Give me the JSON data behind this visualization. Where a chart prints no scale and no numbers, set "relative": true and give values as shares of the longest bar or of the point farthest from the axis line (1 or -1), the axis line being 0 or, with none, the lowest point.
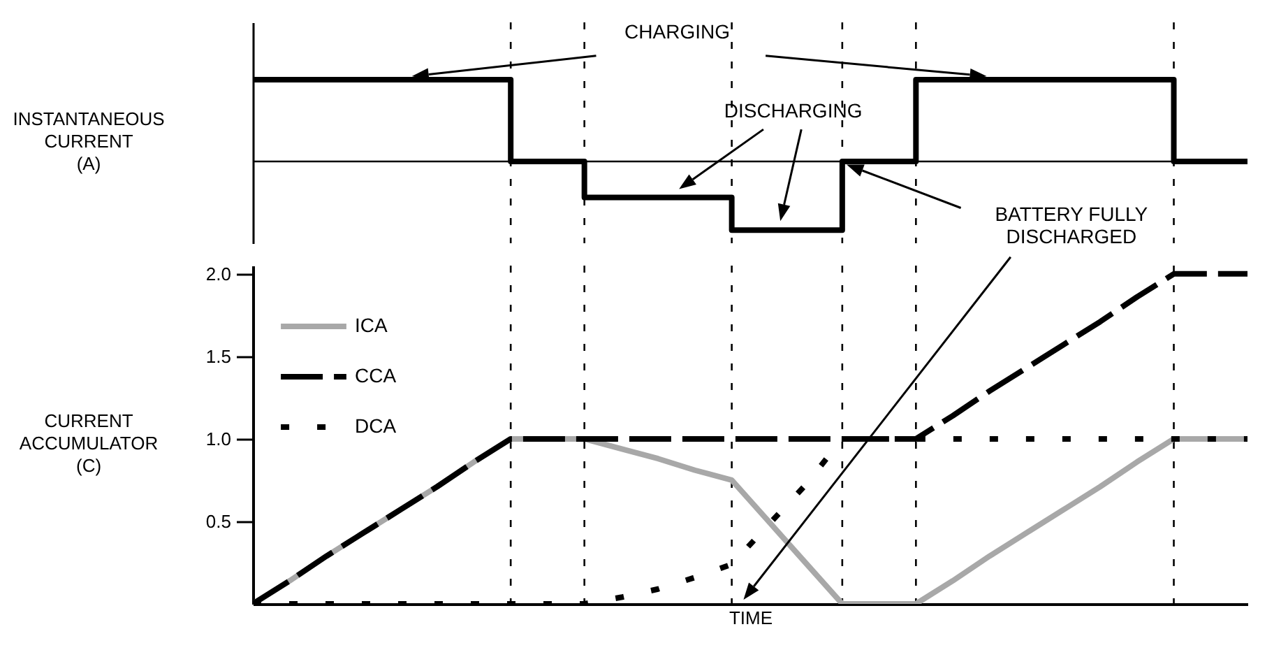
{
  "chart_data": [
    {
      "type": "step",
      "relative": true,
      "ylabel": "INSTANTANEOUS CURRENT (A)",
      "categories": [
        null,
        null,
        null,
        null,
        null,
        null,
        null,
        null,
        null,
        null,
        null,
        null,
        null,
        null,
        null,
        null,
        null,
        null,
        null,
        null,
        null,
        null,
        null,
        null,
        null,
        null,
        null,
        null
      ],
      "tick_labels": false,
      "grid": "x",
      "series": [
        {
          "color": "#000000",
          "values": [
            1,
            1,
            1,
            1,
            1,
            1,
            1,
            0,
            0,
            -0.44,
            -0.44,
            -0.44,
            -0.44,
            -0.84,
            -0.84,
            -0.84,
            0,
            0,
            1,
            1,
            1,
            1,
            1,
            1,
            1,
            0,
            0,
            0
          ]
        }
      ],
      "annotations": [
        "CHARGING",
        "DISCHARGING",
        "BATTERY FULLY DISCHARGED"
      ]
    },
    {
      "type": "line",
      "xlabel": "TIME",
      "ylabel": "CURRENT ACCUMULATOR (C)",
      "ylim": [
        0,
        2.05
      ],
      "yticks": [
        {
          "value": 0.5,
          "label": "0.5"
        },
        {
          "value": 1,
          "label": "1.0"
        },
        {
          "value": 1.5,
          "label": "1.5"
        },
        {
          "value": 2,
          "label": "2.0"
        }
      ],
      "categories": [
        null,
        null,
        null,
        null,
        null,
        null,
        null,
        null,
        null,
        null,
        null,
        null,
        null,
        null,
        null,
        null,
        null,
        null,
        null,
        null,
        null,
        null,
        null,
        null,
        null,
        null,
        null,
        null
      ],
      "tick_labels": "y",
      "legend": "top left",
      "grid": "x",
      "series": [
        {
          "name": "ICA",
          "color": "#a8a8a8",
          "line_style": "solid",
          "values": [
            0,
            0.14,
            0.29,
            0.43,
            0.57,
            0.71,
            0.86,
            1,
            1,
            1,
            0.94,
            0.88,
            0.81,
            0.75,
            0.5,
            0.25,
            0,
            0,
            0,
            0.14,
            0.29,
            0.43,
            0.57,
            0.71,
            0.86,
            1,
            1,
            1
          ]
        },
        {
          "name": "CCA",
          "color": "#000000",
          "line_style": "dashed",
          "values": [
            0,
            0.14,
            0.29,
            0.43,
            0.57,
            0.71,
            0.86,
            1,
            1,
            1,
            1,
            1,
            1,
            1,
            1,
            1,
            1,
            1,
            1,
            1.14,
            1.29,
            1.43,
            1.57,
            1.71,
            1.86,
            2,
            2,
            2
          ]
        },
        {
          "name": "DCA",
          "color": "#000000",
          "line_style": "dotted",
          "values": [
            0,
            0,
            0,
            0,
            0,
            0,
            0,
            0,
            0,
            0,
            0.04,
            0.09,
            0.16,
            0.24,
            0.48,
            0.72,
            1,
            1,
            1,
            1,
            1,
            1,
            1,
            1,
            1,
            1,
            1,
            1
          ]
        }
      ]
    }
  ]
}
